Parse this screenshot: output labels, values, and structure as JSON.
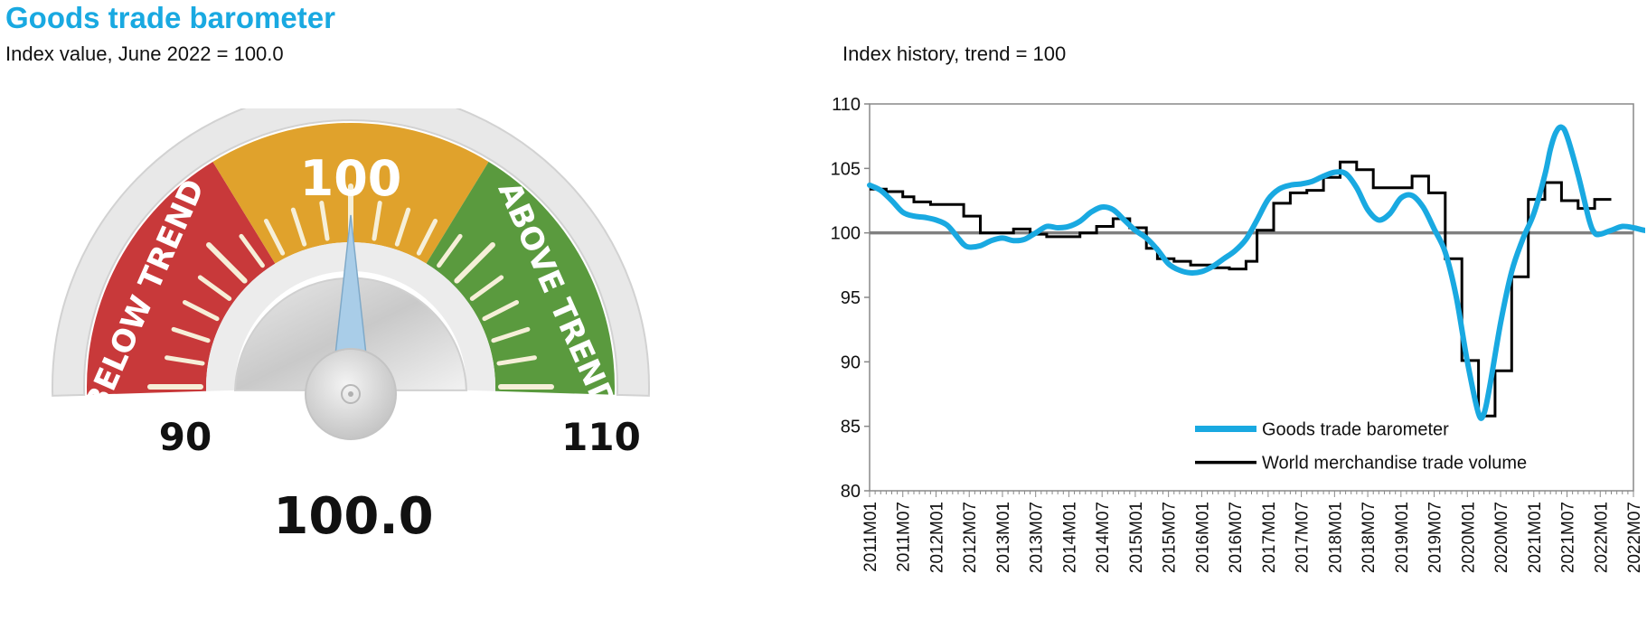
{
  "header": {
    "title": "Goods trade barometer",
    "subtitle": "Index value, June 2022 = 100.0",
    "chart_subtitle": "Index history, trend = 100"
  },
  "colors": {
    "title": "#19a9e1",
    "below": "#c8393a",
    "mid": "#e0a22c",
    "above": "#5a9a3e",
    "barometer_line": "#19a9e1",
    "volume_line": "#000000",
    "trend_line": "#808080"
  },
  "chart_data": [
    {
      "type": "gauge",
      "value": 100.0,
      "value_label": "100.0",
      "min": 90,
      "max": 110,
      "min_label": "90",
      "max_label": "110",
      "zones": [
        {
          "label": "BELOW TREND",
          "from": 90,
          "to": 96.5
        },
        {
          "label": "100",
          "from": 96.5,
          "to": 103.5
        },
        {
          "label": "ABOVE TREND",
          "from": 103.5,
          "to": 110
        }
      ]
    },
    {
      "type": "line",
      "ylim": [
        80,
        110
      ],
      "yticks": [
        80,
        85,
        90,
        95,
        100,
        105,
        110
      ],
      "reference_line": 100,
      "categories": [
        "2011M01",
        "2011M07",
        "2012M01",
        "2012M07",
        "2013M01",
        "2013M07",
        "2014M01",
        "2014M07",
        "2015M01",
        "2015M07",
        "2016M01",
        "2016M07",
        "2017M01",
        "2017M07",
        "2018M01",
        "2018M07",
        "2019M01",
        "2019M07",
        "2020M01",
        "2020M07",
        "2021M01",
        "2021M07",
        "2022M01",
        "2022M07"
      ],
      "legend_position": "bottom-right",
      "series": [
        {
          "name": "Goods trade barometer",
          "style": "smooth",
          "points": [
            [
              0,
              103.7
            ],
            [
              2,
              103.3
            ],
            [
              4,
              102.5
            ],
            [
              6,
              101.6
            ],
            [
              8,
              101.3
            ],
            [
              10,
              101.2
            ],
            [
              12,
              101.0
            ],
            [
              14,
              100.6
            ],
            [
              16,
              99.6
            ],
            [
              17,
              99.1
            ],
            [
              18,
              98.9
            ],
            [
              20,
              99.0
            ],
            [
              22,
              99.4
            ],
            [
              24,
              99.6
            ],
            [
              26,
              99.4
            ],
            [
              28,
              99.5
            ],
            [
              30,
              100.0
            ],
            [
              32,
              100.5
            ],
            [
              34,
              100.4
            ],
            [
              36,
              100.5
            ],
            [
              38,
              100.9
            ],
            [
              40,
              101.6
            ],
            [
              42,
              102.0
            ],
            [
              44,
              101.8
            ],
            [
              46,
              101.0
            ],
            [
              48,
              100.2
            ],
            [
              50,
              99.6
            ],
            [
              52,
              98.7
            ],
            [
              54,
              97.6
            ],
            [
              56,
              97.1
            ],
            [
              58,
              96.9
            ],
            [
              60,
              97.0
            ],
            [
              62,
              97.4
            ],
            [
              64,
              98.0
            ],
            [
              66,
              98.6
            ],
            [
              68,
              99.5
            ],
            [
              70,
              101.0
            ],
            [
              72,
              102.6
            ],
            [
              74,
              103.4
            ],
            [
              76,
              103.7
            ],
            [
              78,
              103.8
            ],
            [
              80,
              104.0
            ],
            [
              82,
              104.4
            ],
            [
              84,
              104.7
            ],
            [
              86,
              104.6
            ],
            [
              88,
              103.5
            ],
            [
              90,
              101.8
            ],
            [
              92,
              101.0
            ],
            [
              94,
              101.5
            ],
            [
              96,
              102.7
            ],
            [
              98,
              102.9
            ],
            [
              100,
              102.0
            ],
            [
              102,
              100.3
            ],
            [
              104,
              98.5
            ],
            [
              106,
              95.0
            ],
            [
              108,
              90.0
            ],
            [
              110,
              86.0
            ],
            [
              111,
              86.0
            ],
            [
              112,
              88.0
            ],
            [
              114,
              93.0
            ],
            [
              116,
              97.0
            ],
            [
              118,
              99.5
            ],
            [
              120,
              101.5
            ],
            [
              122,
              104.5
            ],
            [
              123,
              106.5
            ],
            [
              124,
              107.8
            ],
            [
              125,
              108.2
            ],
            [
              126,
              107.5
            ],
            [
              128,
              104.5
            ],
            [
              130,
              101.0
            ],
            [
              131,
              100.0
            ],
            [
              132,
              99.9
            ],
            [
              134,
              100.2
            ],
            [
              136,
              100.5
            ],
            [
              138,
              100.4
            ],
            [
              140,
              100.2
            ],
            [
              142,
              100.1
            ]
          ]
        },
        {
          "name": "World merchandise trade volume",
          "style": "step",
          "points": [
            [
              0,
              103.4
            ],
            [
              3,
              103.4
            ],
            [
              3,
              103.2
            ],
            [
              6,
              103.2
            ],
            [
              6,
              102.8
            ],
            [
              8,
              102.8
            ],
            [
              8,
              102.4
            ],
            [
              11,
              102.4
            ],
            [
              11,
              102.2
            ],
            [
              17,
              102.2
            ],
            [
              17,
              101.3
            ],
            [
              20,
              101.3
            ],
            [
              20,
              100.0
            ],
            [
              26,
              100.0
            ],
            [
              26,
              100.3
            ],
            [
              29,
              100.3
            ],
            [
              29,
              99.9
            ],
            [
              32,
              99.9
            ],
            [
              32,
              99.7
            ],
            [
              38,
              99.7
            ],
            [
              38,
              100.0
            ],
            [
              41,
              100.0
            ],
            [
              41,
              100.5
            ],
            [
              44,
              100.5
            ],
            [
              44,
              101.1
            ],
            [
              47,
              101.1
            ],
            [
              47,
              100.4
            ],
            [
              50,
              100.4
            ],
            [
              50,
              98.8
            ],
            [
              52,
              98.8
            ],
            [
              52,
              98.0
            ],
            [
              55,
              98.0
            ],
            [
              55,
              97.8
            ],
            [
              58,
              97.8
            ],
            [
              58,
              97.5
            ],
            [
              62,
              97.5
            ],
            [
              62,
              97.3
            ],
            [
              65,
              97.3
            ],
            [
              65,
              97.2
            ],
            [
              68,
              97.2
            ],
            [
              68,
              97.8
            ],
            [
              70,
              97.8
            ],
            [
              70,
              100.2
            ],
            [
              73,
              100.2
            ],
            [
              73,
              102.3
            ],
            [
              76,
              102.3
            ],
            [
              76,
              103.1
            ],
            [
              79,
              103.1
            ],
            [
              79,
              103.3
            ],
            [
              82,
              103.3
            ],
            [
              82,
              104.3
            ],
            [
              85,
              104.3
            ],
            [
              85,
              105.5
            ],
            [
              88,
              105.5
            ],
            [
              88,
              104.9
            ],
            [
              91,
              104.9
            ],
            [
              91,
              103.5
            ],
            [
              98,
              103.5
            ],
            [
              98,
              104.4
            ],
            [
              101,
              104.4
            ],
            [
              101,
              103.1
            ],
            [
              104,
              103.1
            ],
            [
              104,
              98.0
            ],
            [
              107,
              98.0
            ],
            [
              107,
              90.1
            ],
            [
              110,
              90.1
            ],
            [
              110,
              85.8
            ],
            [
              113,
              85.8
            ],
            [
              113,
              89.3
            ],
            [
              116,
              89.3
            ],
            [
              116,
              96.6
            ],
            [
              119,
              96.6
            ],
            [
              119,
              102.6
            ],
            [
              122,
              102.6
            ],
            [
              122,
              103.9
            ],
            [
              125,
              103.9
            ],
            [
              125,
              102.5
            ],
            [
              128,
              102.5
            ],
            [
              128,
              101.9
            ],
            [
              131,
              101.9
            ],
            [
              131,
              102.6
            ],
            [
              134,
              102.6
            ]
          ]
        }
      ]
    }
  ]
}
